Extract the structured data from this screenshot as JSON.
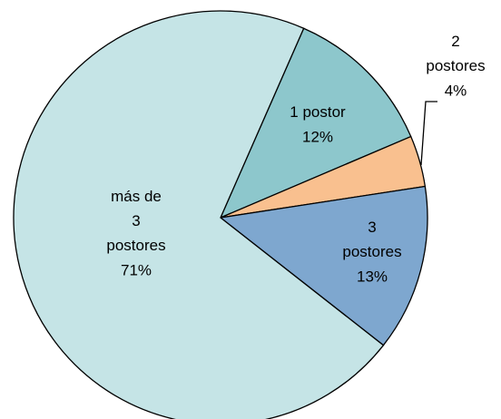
{
  "chart_data": {
    "type": "pie",
    "categories": [
      "1 postor",
      "2\npostores",
      "3\npostores",
      "más de\n3\npostores"
    ],
    "values": [
      12,
      4,
      13,
      71
    ],
    "value_labels": [
      "12%",
      "4%",
      "13%",
      "71%"
    ],
    "colors": [
      "#8dc7cc",
      "#f9c08f",
      "#7ea7cf",
      "#c5e4e6"
    ]
  }
}
